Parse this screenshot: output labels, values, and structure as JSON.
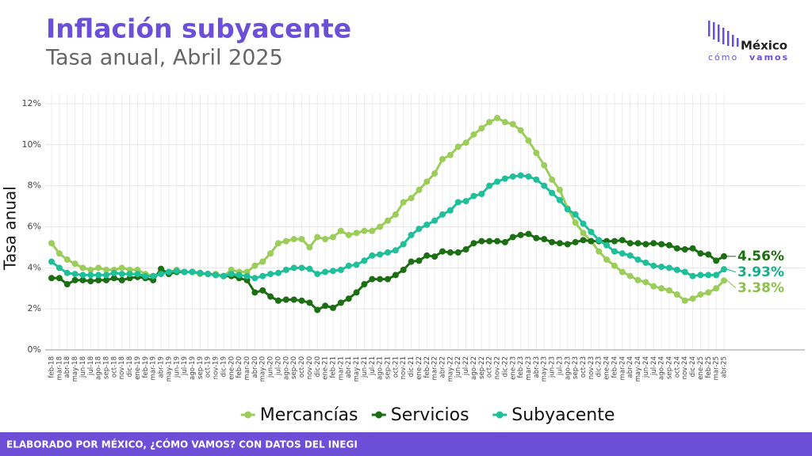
{
  "chart_data": {
    "type": "line",
    "title": "Inflación subyacente",
    "subtitle": "Tasa anual, Abril 2025",
    "y_label": "Tasa anual",
    "footer": "ELABORADO POR MÉXICO, ¿CÓMO VAMOS? CON DATOS DEL INEGI",
    "logo": {
      "top": "México",
      "bottom_light": "cómo",
      "bottom_bold": "vamos"
    },
    "categories": [
      "feb-18",
      "mar-18",
      "abr-18",
      "may-18",
      "jun-18",
      "jul-18",
      "ago-18",
      "sep-18",
      "oct-18",
      "nov-18",
      "dic-18",
      "ene-19",
      "feb-19",
      "mar-19",
      "abr-19",
      "may-19",
      "jun-19",
      "jul-19",
      "ago-19",
      "sep-19",
      "oct-19",
      "nov-19",
      "dic-19",
      "ene-20",
      "feb-20",
      "mar-20",
      "abr-20",
      "may-20",
      "jun-20",
      "jul-20",
      "ago-20",
      "sep-20",
      "oct-20",
      "nov-20",
      "dic-20",
      "ene-21",
      "feb-21",
      "mar-21",
      "abr-21",
      "may-21",
      "jun-21",
      "jul-21",
      "ago-21",
      "sep-21",
      "oct-21",
      "nov-21",
      "dic-21",
      "ene-22",
      "feb-22",
      "mar-22",
      "abr-22",
      "may-22",
      "jun-22",
      "jul-22",
      "ago-22",
      "sep-22",
      "oct-22",
      "nov-22",
      "dic-22",
      "ene-23",
      "feb-23",
      "mar-23",
      "abr-23",
      "may-23",
      "jun-23",
      "jul-23",
      "ago-23",
      "sep-23",
      "oct-23",
      "nov-23",
      "dic-23",
      "ene-24",
      "feb-24",
      "mar-24",
      "abr-24",
      "may-24",
      "jun-24",
      "jul-24",
      "ago-24",
      "sep-24",
      "oct-24",
      "nov-24",
      "dic-24",
      "ene-25",
      "feb-25",
      "mar-25",
      "abr-25"
    ],
    "series": [
      {
        "name": "Mercancías",
        "color": "#9ccc5a",
        "label_color": "#8cc04a",
        "values": [
          5.2,
          4.7,
          4.4,
          4.2,
          4.0,
          3.9,
          4.0,
          3.9,
          3.9,
          4.0,
          3.9,
          3.9,
          3.7,
          3.6,
          3.7,
          3.8,
          3.9,
          3.8,
          3.8,
          3.7,
          3.7,
          3.7,
          3.6,
          3.9,
          3.8,
          3.8,
          4.1,
          4.3,
          4.7,
          5.2,
          5.3,
          5.4,
          5.4,
          5.0,
          5.5,
          5.4,
          5.5,
          5.8,
          5.6,
          5.7,
          5.8,
          5.8,
          6.0,
          6.3,
          6.6,
          7.2,
          7.4,
          7.8,
          8.2,
          8.6,
          9.3,
          9.5,
          9.9,
          10.1,
          10.5,
          10.8,
          11.1,
          11.3,
          11.1,
          11.0,
          10.7,
          10.2,
          9.6,
          9.0,
          8.3,
          7.8,
          6.9,
          6.2,
          5.7,
          5.3,
          4.8,
          4.4,
          4.1,
          3.8,
          3.6,
          3.4,
          3.3,
          3.1,
          3.0,
          2.9,
          2.7,
          2.4,
          2.5,
          2.7,
          2.8,
          3.0,
          3.38
        ],
        "value_labels": [
          null,
          null,
          null,
          null,
          null,
          null,
          null,
          null,
          null,
          null,
          null,
          null,
          null,
          null,
          null,
          null,
          null,
          null,
          null,
          null,
          null,
          null,
          null,
          null,
          null,
          null,
          null,
          null,
          null,
          null,
          null,
          null,
          null,
          null,
          null,
          null,
          null,
          null,
          null,
          null,
          null,
          null,
          null,
          null,
          null,
          null,
          null,
          null,
          null,
          null,
          null,
          null,
          null,
          null,
          null,
          null,
          null,
          null,
          null,
          null,
          null,
          null,
          null,
          null,
          null,
          null,
          null,
          null,
          null,
          null,
          null,
          null,
          null,
          null,
          null,
          null,
          null,
          null,
          null,
          null,
          null,
          null,
          null,
          null,
          null,
          null,
          "3.38%"
        ]
      },
      {
        "name": "Servicios",
        "color": "#1b6e12",
        "label_color": "#1b6e12",
        "values": [
          3.5,
          3.5,
          3.2,
          3.4,
          3.4,
          3.35,
          3.4,
          3.4,
          3.5,
          3.4,
          3.5,
          3.55,
          3.5,
          3.4,
          3.95,
          3.7,
          3.8,
          3.8,
          3.8,
          3.75,
          3.7,
          3.65,
          3.6,
          3.6,
          3.5,
          3.4,
          2.8,
          2.9,
          2.6,
          2.4,
          2.45,
          2.45,
          2.4,
          2.3,
          1.95,
          2.15,
          2.05,
          2.3,
          2.5,
          2.8,
          3.2,
          3.45,
          3.45,
          3.45,
          3.65,
          3.9,
          4.3,
          4.35,
          4.6,
          4.55,
          4.8,
          4.75,
          4.75,
          4.9,
          5.2,
          5.3,
          5.3,
          5.3,
          5.25,
          5.5,
          5.6,
          5.65,
          5.45,
          5.4,
          5.25,
          5.2,
          5.15,
          5.25,
          5.35,
          5.3,
          5.3,
          5.3,
          5.3,
          5.35,
          5.2,
          5.2,
          5.15,
          5.2,
          5.15,
          5.1,
          4.95,
          4.9,
          4.95,
          4.7,
          4.65,
          4.35,
          4.56
        ],
        "value_labels": [
          null,
          null,
          null,
          null,
          null,
          null,
          null,
          null,
          null,
          null,
          null,
          null,
          null,
          null,
          null,
          null,
          null,
          null,
          null,
          null,
          null,
          null,
          null,
          null,
          null,
          null,
          null,
          null,
          null,
          null,
          null,
          null,
          null,
          null,
          null,
          null,
          null,
          null,
          null,
          null,
          null,
          null,
          null,
          null,
          null,
          null,
          null,
          null,
          null,
          null,
          null,
          null,
          null,
          null,
          null,
          null,
          null,
          null,
          null,
          null,
          null,
          null,
          null,
          null,
          null,
          null,
          null,
          null,
          null,
          null,
          null,
          null,
          null,
          null,
          null,
          null,
          null,
          null,
          null,
          null,
          null,
          null,
          null,
          null,
          null,
          null,
          "4.56%"
        ]
      },
      {
        "name": "Subyacente",
        "color": "#1fbf9a",
        "label_color": "#12b08a",
        "values": [
          4.3,
          4.0,
          3.75,
          3.7,
          3.65,
          3.65,
          3.65,
          3.65,
          3.75,
          3.7,
          3.7,
          3.7,
          3.6,
          3.6,
          3.7,
          3.8,
          3.85,
          3.8,
          3.8,
          3.75,
          3.7,
          3.65,
          3.6,
          3.7,
          3.65,
          3.6,
          3.5,
          3.6,
          3.7,
          3.75,
          3.9,
          4.0,
          4.0,
          3.95,
          3.7,
          3.8,
          3.85,
          3.9,
          4.1,
          4.15,
          4.35,
          4.6,
          4.65,
          4.75,
          4.85,
          5.15,
          5.6,
          5.9,
          6.1,
          6.3,
          6.6,
          6.8,
          7.2,
          7.25,
          7.5,
          7.6,
          8.0,
          8.2,
          8.35,
          8.45,
          8.5,
          8.45,
          8.3,
          8.0,
          7.65,
          7.3,
          6.85,
          6.6,
          6.15,
          5.75,
          5.35,
          5.1,
          4.8,
          4.7,
          4.6,
          4.4,
          4.25,
          4.1,
          4.05,
          4.0,
          3.9,
          3.8,
          3.6,
          3.65,
          3.65,
          3.65,
          3.93
        ],
        "value_labels": [
          null,
          null,
          null,
          null,
          null,
          null,
          null,
          null,
          null,
          null,
          null,
          null,
          null,
          null,
          null,
          null,
          null,
          null,
          null,
          null,
          null,
          null,
          null,
          null,
          null,
          null,
          null,
          null,
          null,
          null,
          null,
          null,
          null,
          null,
          null,
          null,
          null,
          null,
          null,
          null,
          null,
          null,
          null,
          null,
          null,
          null,
          null,
          null,
          null,
          null,
          null,
          null,
          null,
          null,
          null,
          null,
          null,
          null,
          null,
          null,
          null,
          null,
          null,
          null,
          null,
          null,
          null,
          null,
          null,
          null,
          null,
          null,
          null,
          null,
          null,
          null,
          null,
          null,
          null,
          null,
          null,
          null,
          null,
          null,
          null,
          null,
          "3.93%"
        ]
      }
    ],
    "ylim": [
      0,
      12.5
    ],
    "yticks": [
      {
        "value": 0,
        "label": "0%"
      },
      {
        "value": 2,
        "label": "2%"
      },
      {
        "value": 4,
        "label": "4%"
      },
      {
        "value": 6,
        "label": "6%"
      },
      {
        "value": 8,
        "label": "8%"
      },
      {
        "value": 10,
        "label": "10%"
      },
      {
        "value": 12,
        "label": "12%"
      }
    ],
    "grid": true,
    "legend": "bottom"
  }
}
